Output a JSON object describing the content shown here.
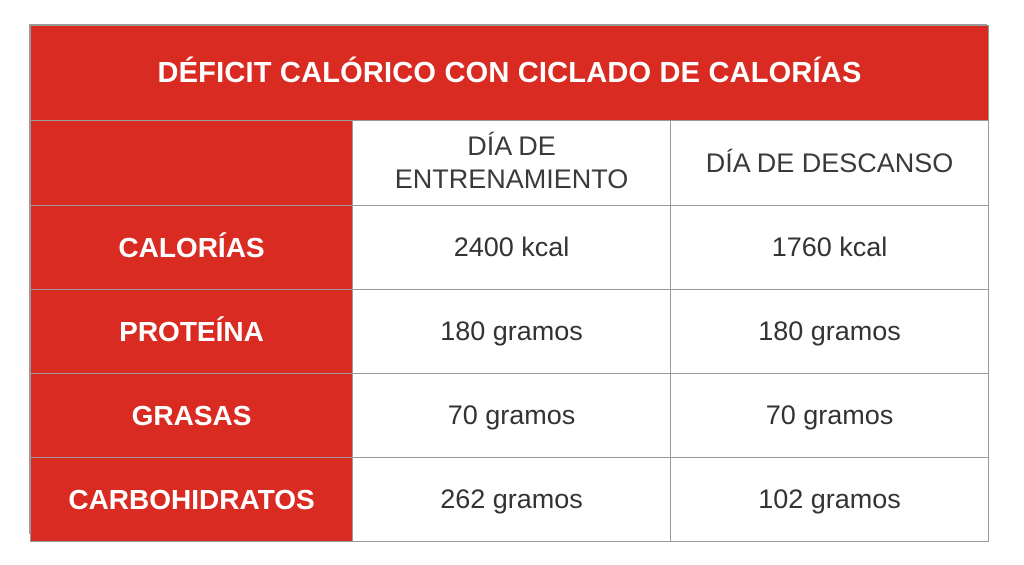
{
  "title": "DÉFICIT CALÓRICO CON CICLADO DE CALORÍAS",
  "columns": {
    "empty": "",
    "training_day": "DÍA DE ENTRENAMIENTO",
    "rest_day": "DÍA DE DESCANSO"
  },
  "rows": [
    {
      "label": "CALORÍAS",
      "training": "2400 kcal",
      "rest": "1760 kcal"
    },
    {
      "label": "PROTEÍNA",
      "training": "180 gramos",
      "rest": "180 gramos"
    },
    {
      "label": "GRASAS",
      "training": "70 gramos",
      "rest": "70 gramos"
    },
    {
      "label": "CARBOHIDRATOS",
      "training": "262 gramos",
      "rest": "102 gramos"
    }
  ],
  "colors": {
    "header_red": "#d92b21",
    "border": "#9a9a9a"
  }
}
